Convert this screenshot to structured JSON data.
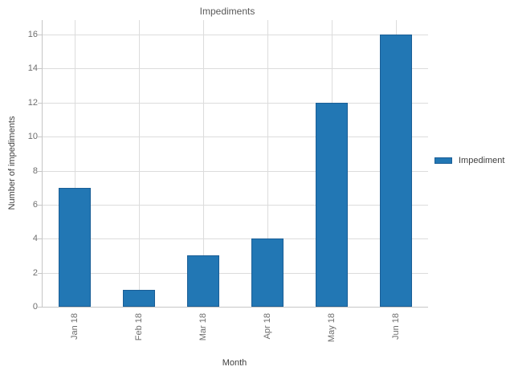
{
  "chart_data": {
    "type": "bar",
    "title": "Impediments",
    "categories": [
      "Jan 18",
      "Feb 18",
      "Mar 18",
      "Apr 18",
      "May 18",
      "Jun 18"
    ],
    "series": [
      {
        "name": "Impediment",
        "values": [
          7,
          1,
          3,
          4,
          12,
          16
        ]
      }
    ],
    "xlabel": "Month",
    "ylabel": "Number of impediments",
    "ylim": [
      0,
      16.85
    ],
    "yticks": [
      0,
      2,
      4,
      6,
      8,
      10,
      12,
      14,
      16
    ],
    "grid": "both",
    "legend_position": "center-right",
    "colors": {
      "bar_fill": "#2277b4",
      "bar_border": "#1a5e96",
      "gridline": "#dcdcdc",
      "axis_line": "#c6c6c6",
      "tick_text": "#6e6e6e",
      "axis_title_text": "#3f3f3f",
      "title_text": "#595959"
    }
  }
}
